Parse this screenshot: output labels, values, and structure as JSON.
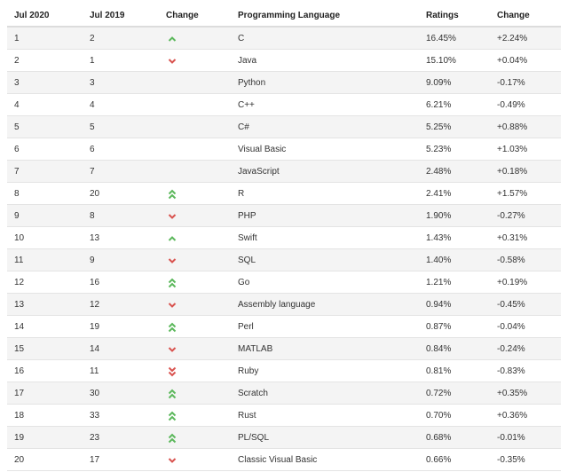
{
  "table": {
    "header": [
      "Jul 2020",
      "Jul 2019",
      "Change",
      "Programming Language",
      "Ratings",
      "Change"
    ],
    "rows": [
      [
        1,
        2,
        "C",
        "16.45%",
        "+2.24%"
      ],
      [
        2,
        1,
        "Java",
        "15.10%",
        "+0.04%"
      ],
      [
        3,
        3,
        "Python",
        "9.09%",
        "-0.17%"
      ],
      [
        4,
        4,
        "C++",
        "6.21%",
        "-0.49%"
      ],
      [
        5,
        5,
        "C#",
        "5.25%",
        "+0.88%"
      ],
      [
        6,
        6,
        "Visual Basic",
        "5.23%",
        "+1.03%"
      ],
      [
        7,
        7,
        "JavaScript",
        "2.48%",
        "+0.18%"
      ],
      [
        8,
        20,
        "R",
        "2.41%",
        "+1.57%"
      ],
      [
        9,
        8,
        "PHP",
        "1.90%",
        "-0.27%"
      ],
      [
        10,
        13,
        "Swift",
        "1.43%",
        "+0.31%"
      ],
      [
        11,
        9,
        "SQL",
        "1.40%",
        "-0.58%"
      ],
      [
        12,
        16,
        "Go",
        "1.21%",
        "+0.19%"
      ],
      [
        13,
        12,
        "Assembly language",
        "0.94%",
        "-0.45%"
      ],
      [
        14,
        19,
        "Perl",
        "0.87%",
        "-0.04%"
      ],
      [
        15,
        14,
        "MATLAB",
        "0.84%",
        "-0.24%"
      ],
      [
        16,
        11,
        "Ruby",
        "0.81%",
        "-0.83%"
      ],
      [
        17,
        30,
        "Scratch",
        "0.72%",
        "+0.35%"
      ],
      [
        18,
        33,
        "Rust",
        "0.70%",
        "+0.36%"
      ],
      [
        19,
        23,
        "PL/SQL",
        "0.68%",
        "-0.01%"
      ],
      [
        20,
        17,
        "Classic Visual Basic",
        "0.66%",
        "-0.35%"
      ]
    ]
  }
}
